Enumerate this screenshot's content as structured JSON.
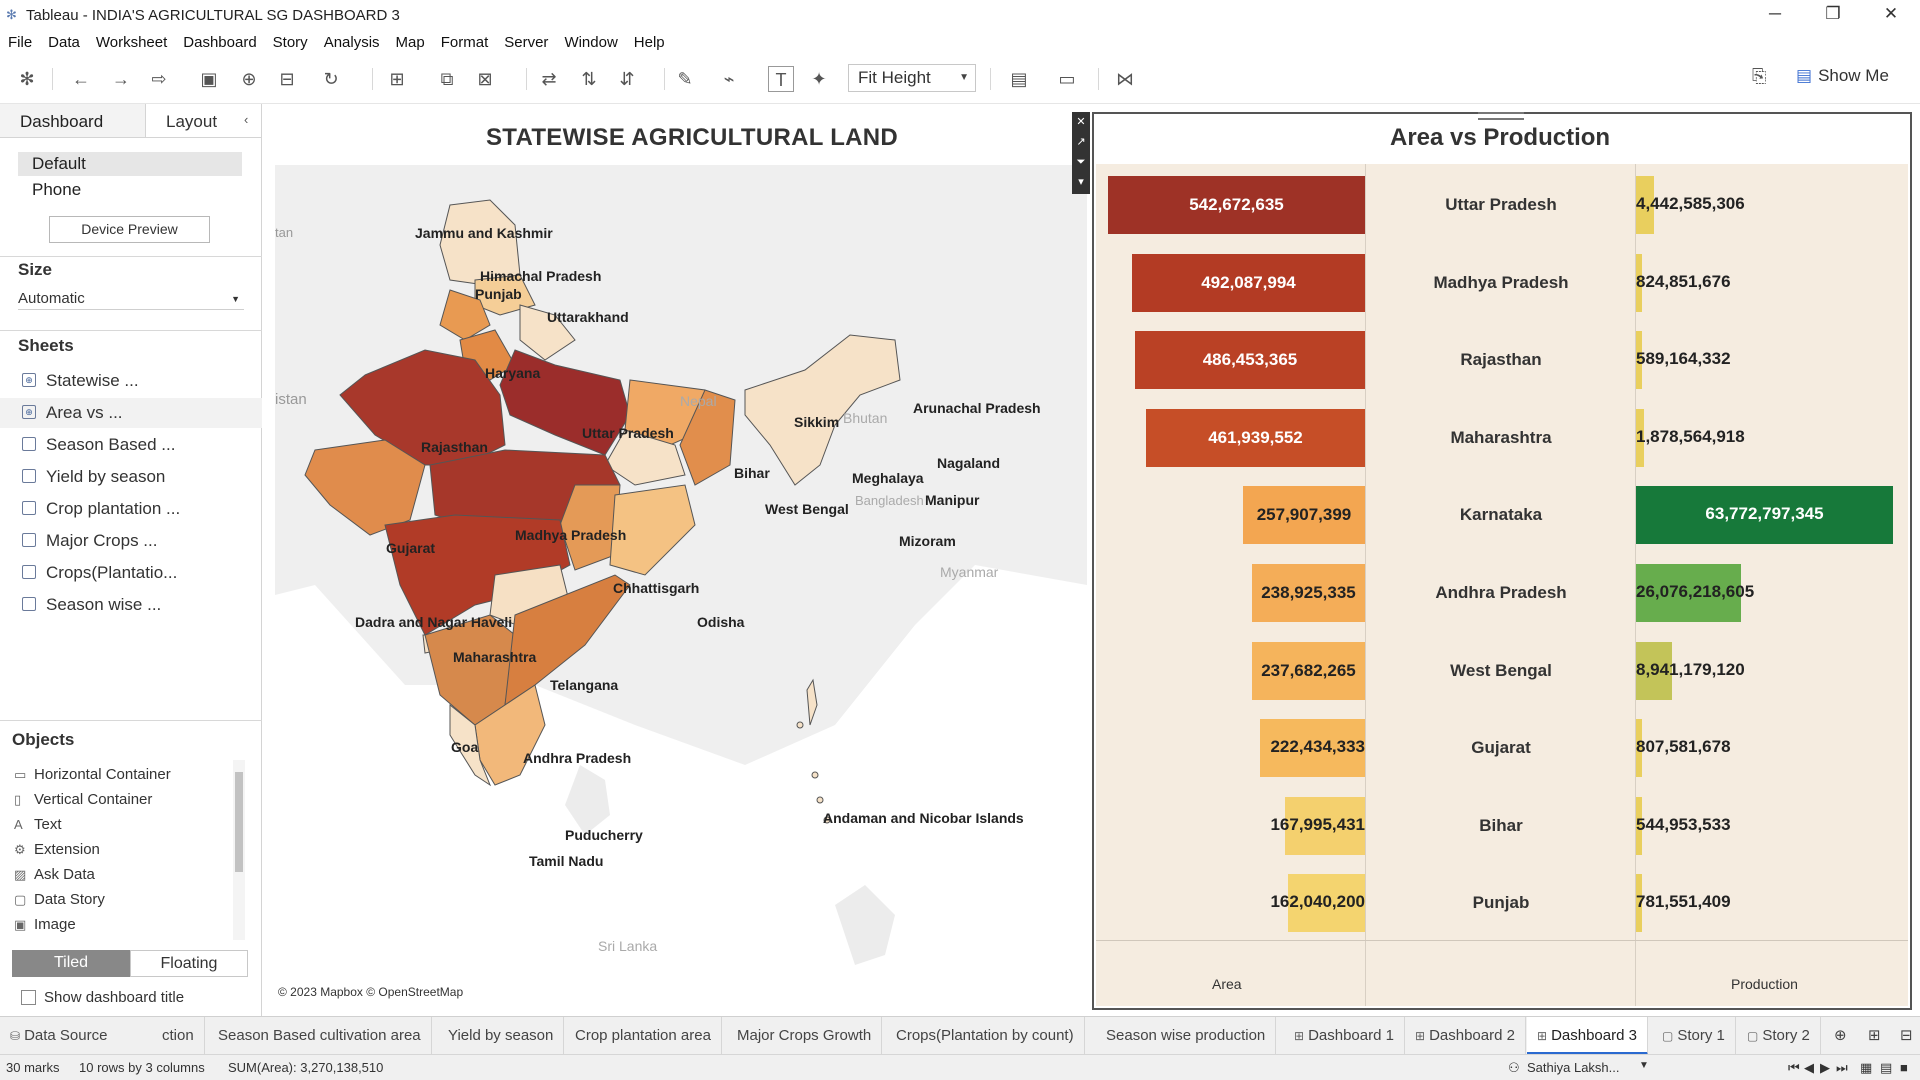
{
  "window": {
    "title": "Tableau - INDIA'S AGRICULTURAL SG DASHBOARD 3",
    "controls": [
      "─",
      "❐",
      "✕"
    ]
  },
  "menu": [
    "File",
    "Data",
    "Worksheet",
    "Dashboard",
    "Story",
    "Analysis",
    "Map",
    "Format",
    "Server",
    "Window",
    "Help"
  ],
  "toolbar": {
    "fit": "Fit Height",
    "show_me": "Show Me"
  },
  "sidebar": {
    "tabs": [
      "Dashboard",
      "Layout"
    ],
    "devices": [
      "Default",
      "Phone"
    ],
    "device_preview": "Device Preview",
    "size_heading": "Size",
    "size_value": "Automatic",
    "sheets_heading": "Sheets",
    "sheets": [
      "Statewise ...",
      "Area vs ...",
      "Season Based ...",
      "Yield by season",
      "Crop plantation ...",
      "Major Crops ...",
      "Crops(Plantatio...",
      "Season wise ..."
    ],
    "objects_heading": "Objects",
    "objects": [
      "Horizontal Container",
      "Vertical Container",
      "Text",
      "Extension",
      "Ask Data",
      "Data Story",
      "Image"
    ],
    "tiled": "Tiled",
    "floating": "Floating",
    "show_title": "Show dashboard title"
  },
  "map": {
    "title": "STATEWISE AGRICULTURAL LAND",
    "attribution": "© 2023 Mapbox © OpenStreetMap",
    "labels": {
      "jk": "Jammu and Kashmir",
      "hp": "Himachal Pradesh",
      "pb": "Punjab",
      "uk": "Uttarakhand",
      "hr": "Haryana",
      "rj": "Rajasthan",
      "up": "Uttar Pradesh",
      "np": "Nepal",
      "bt": "Bhutan",
      "sk": "Sikkim",
      "ar": "Arunachal Pradesh",
      "ng": "Nagaland",
      "ml": "Meghalaya",
      "mn": "Manipur",
      "mz": "Mizoram",
      "mm": "Myanmar",
      "bh": "Bihar",
      "wb": "West Bengal",
      "bd": "Bangladesh",
      "gj": "Gujarat",
      "mp": "Madhya Pradesh",
      "cg": "Chhattisgarh",
      "od": "Odisha",
      "dn": "Dadra and Nagar Haveli",
      "mh": "Maharashtra",
      "tg": "Telangana",
      "ga": "Goa",
      "ap": "Andhra Pradesh",
      "py": "Puducherry",
      "tn": "Tamil Nadu",
      "an": "Andaman and Nicobar Islands",
      "sl": "Sri Lanka",
      "pk": "istan",
      "af": "tan"
    }
  },
  "area_vs_production": {
    "title": "Area vs Production",
    "axis_area": "Area",
    "axis_production": "Production",
    "rows": [
      {
        "state": "Uttar Pradesh",
        "area": 542672635,
        "area_label": "542,672,635",
        "production": 4442585306,
        "production_label": "4,442,585,306"
      },
      {
        "state": "Madhya Pradesh",
        "area": 492087994,
        "area_label": "492,087,994",
        "production": 824851676,
        "production_label": "824,851,676"
      },
      {
        "state": "Rajasthan",
        "area": 486453365,
        "area_label": "486,453,365",
        "production": 589164332,
        "production_label": "589,164,332"
      },
      {
        "state": "Maharashtra",
        "area": 461939552,
        "area_label": "461,939,552",
        "production": 1878564918,
        "production_label": "1,878,564,918"
      },
      {
        "state": "Karnataka",
        "area": 257907399,
        "area_label": "257,907,399",
        "production": 63772797345,
        "production_label": "63,772,797,345"
      },
      {
        "state": "Andhra Pradesh",
        "area": 238925335,
        "area_label": "238,925,335",
        "production": 26076218605,
        "production_label": "26,076,218,605"
      },
      {
        "state": "West Bengal",
        "area": 237682265,
        "area_label": "237,682,265",
        "production": 8941179120,
        "production_label": "8,941,179,120"
      },
      {
        "state": "Gujarat",
        "area": 222434333,
        "area_label": "222,434,333",
        "production": 807581678,
        "production_label": "807,581,678"
      },
      {
        "state": "Bihar",
        "area": 167995431,
        "area_label": "167,995,431",
        "production": 544953533,
        "production_label": "544,953,533"
      },
      {
        "state": "Punjab",
        "area": 162040200,
        "area_label": "162,040,200",
        "production": 781551409,
        "production_label": "781,551,409"
      }
    ],
    "area_colors": [
      "#9e3226",
      "#b33b24",
      "#ba4125",
      "#c64e27",
      "#f3a651",
      "#f4ad58",
      "#f5b45c",
      "#f6b95d",
      "#f4d06e",
      "#f4d46f"
    ],
    "prod_colors": [
      "#e9cf5e",
      "#e9cf5e",
      "#e9cf5e",
      "#e9cf5e",
      "#17793a",
      "#67ad4d",
      "#c3c459",
      "#e9cf5e",
      "#e9cf5e",
      "#e9cf5e"
    ]
  },
  "tabs": [
    "ction",
    "Season Based cultivation area",
    "Yield by season",
    "Crop plantation area",
    "Major Crops Growth",
    "Crops(Plantation by count)",
    "Season wise production",
    "Dashboard 1",
    "Dashboard 2",
    "Dashboard 3",
    "Story 1",
    "Story 2"
  ],
  "data_source": "Data Source",
  "status": {
    "marks": "30 marks",
    "rows": "10 rows by 3 columns",
    "sum": "SUM(Area): 3,270,138,510",
    "user": "Sathiya Laksh..."
  }
}
